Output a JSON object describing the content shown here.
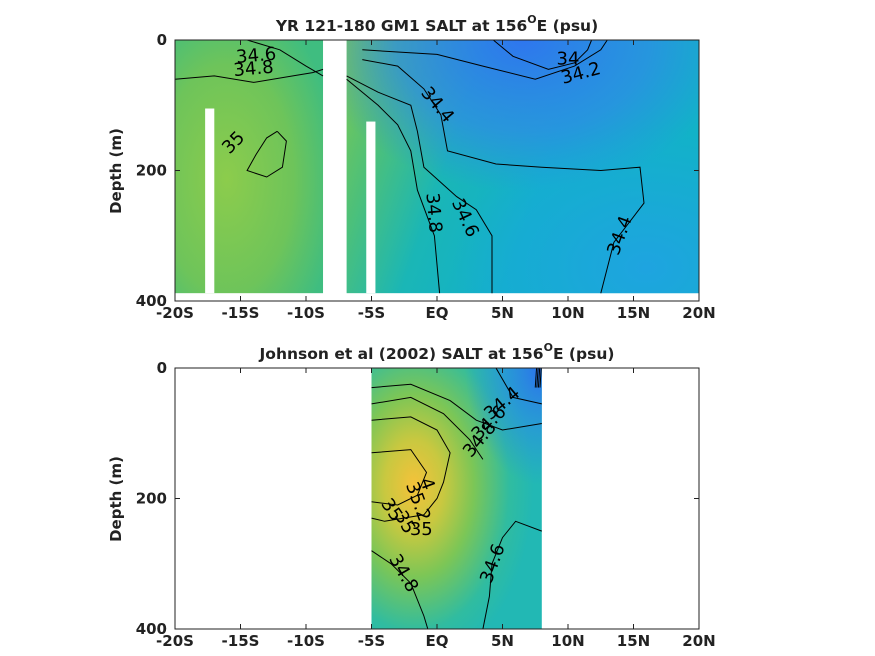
{
  "chart_data": [
    {
      "type": "heatmap",
      "title": "YR 121-180 GM1 SALT at 156",
      "title_sup": "O",
      "title_suffix": "E (psu)",
      "ylabel": "Depth (m)",
      "xlabel": "",
      "x_range": [
        -20,
        20
      ],
      "y_range": [
        0,
        400
      ],
      "y_reversed": true,
      "x_ticks": [
        -20,
        -15,
        -10,
        -5,
        0,
        5,
        10,
        15,
        20
      ],
      "x_tick_labels": [
        "-20S",
        "-15S",
        "-10S",
        "-5S",
        "EQ",
        "5N",
        "10N",
        "15N",
        "20N"
      ],
      "y_ticks": [
        0,
        200,
        400
      ],
      "y_tick_labels": [
        "0",
        "200",
        "400"
      ],
      "colors": {
        "low": "#3377ee",
        "mid": "#14b8c4",
        "high": "#8acc4c"
      },
      "colored_x_ranges": [
        [
          -20,
          -8.7
        ],
        [
          -6.9,
          20
        ]
      ],
      "data_bottom_depth": 388,
      "contours": [
        {
          "label": "34",
          "points": [
            [
              4.3,
              0
            ],
            [
              5.8,
              25
            ],
            [
              8.5,
              45
            ],
            [
              10.5,
              35
            ],
            [
              11.5,
              15
            ],
            [
              11.8,
              0
            ]
          ]
        },
        {
          "label": "34.2",
          "points": [
            [
              -5.7,
              15
            ],
            [
              0,
              22
            ],
            [
              3.5,
              40
            ],
            [
              7.5,
              60
            ],
            [
              10.5,
              40
            ],
            [
              12.5,
              15
            ],
            [
              13,
              0
            ]
          ]
        },
        {
          "label": "34.4",
          "points": [
            [
              -5.7,
              30
            ],
            [
              -3,
              40
            ],
            [
              -1,
              75
            ],
            [
              0.3,
              115
            ],
            [
              0.8,
              170
            ],
            [
              4.5,
              190
            ],
            [
              8,
              195
            ],
            [
              12.5,
              200
            ],
            [
              15.5,
              195
            ],
            [
              15.8,
              250
            ],
            [
              13.5,
              310
            ],
            [
              12.5,
              388
            ]
          ]
        },
        {
          "label": "34.6",
          "points": [
            [
              -14.5,
              0
            ],
            [
              -12,
              15
            ],
            [
              -10,
              40
            ],
            [
              -8.7,
              55
            ]
          ]
        },
        {
          "label": "34.6",
          "points": [
            [
              -6.9,
              55
            ],
            [
              -4.5,
              80
            ],
            [
              -2,
              100
            ],
            [
              -1.5,
              140
            ],
            [
              -1,
              195
            ],
            [
              1.5,
              240
            ],
            [
              3,
              260
            ],
            [
              4.2,
              300
            ],
            [
              4.2,
              388
            ]
          ]
        },
        {
          "label": "34.8",
          "points": [
            [
              -20,
              60
            ],
            [
              -17,
              55
            ],
            [
              -14,
              65
            ],
            [
              -11,
              55
            ],
            [
              -9.5,
              50
            ],
            [
              -8.7,
              45
            ]
          ]
        },
        {
          "label": "34.8",
          "points": [
            [
              -6.9,
              60
            ],
            [
              -4.5,
              100
            ],
            [
              -3,
              130
            ],
            [
              -2,
              170
            ],
            [
              -1.5,
              230
            ],
            [
              -0.2,
              300
            ],
            [
              0.2,
              388
            ]
          ]
        },
        {
          "label": "35",
          "points": [
            [
              -12.2,
              140
            ],
            [
              -11.5,
              155
            ],
            [
              -11.8,
              195
            ],
            [
              -13,
              210
            ],
            [
              -14.5,
              200
            ],
            [
              -13.8,
              175
            ],
            [
              -13,
              150
            ],
            [
              -12.2,
              140
            ]
          ]
        }
      ],
      "contour_labels": [
        {
          "text": "34.6",
          "x": -13.8,
          "y": 25,
          "angle": -5
        },
        {
          "text": "34.8",
          "x": -14,
          "y": 45,
          "angle": -5
        },
        {
          "text": "34",
          "x": 10,
          "y": 30,
          "angle": 0
        },
        {
          "text": "34.2",
          "x": 11,
          "y": 52,
          "angle": -15
        },
        {
          "text": "34.4",
          "x": 0,
          "y": 100,
          "angle": 50
        },
        {
          "text": "35",
          "x": -15.5,
          "y": 158,
          "angle": -45
        },
        {
          "text": "34.8",
          "x": -0.3,
          "y": 265,
          "angle": 85
        },
        {
          "text": "34.6",
          "x": 2.1,
          "y": 273,
          "angle": 65
        },
        {
          "text": "34.4",
          "x": 14,
          "y": 300,
          "angle": -70
        }
      ]
    },
    {
      "type": "heatmap",
      "title": "Johnson et al (2002) SALT at 156",
      "title_sup": "O",
      "title_suffix": "E (psu)",
      "ylabel": "Depth (m)",
      "xlabel": "",
      "x_range": [
        -20,
        20
      ],
      "y_range": [
        0,
        400
      ],
      "y_reversed": true,
      "x_ticks": [
        -20,
        -15,
        -10,
        -5,
        0,
        5,
        10,
        15,
        20
      ],
      "x_tick_labels": [
        "-20S",
        "-15S",
        "-10S",
        "-5S",
        "EQ",
        "5N",
        "10N",
        "15N",
        "20N"
      ],
      "y_ticks": [
        0,
        200,
        400
      ],
      "y_tick_labels": [
        "0",
        "200",
        "400"
      ],
      "colors": {
        "low": "#3377ee",
        "mid": "#14b8c4",
        "high": "#8acc4c",
        "max": "#f5c23a"
      },
      "colored_x_ranges": [
        [
          -5,
          8
        ]
      ],
      "data_bottom_depth": 400,
      "contours": [
        {
          "label": "34.4",
          "points": [
            [
              4.5,
              0
            ],
            [
              5.8,
              45
            ],
            [
              8,
              55
            ]
          ]
        },
        {
          "label": "34.6",
          "points": [
            [
              -5,
              30
            ],
            [
              -2,
              25
            ],
            [
              1,
              50
            ],
            [
              3,
              80
            ],
            [
              5,
              95
            ],
            [
              8,
              85
            ]
          ]
        },
        {
          "label": "34.6",
          "points": [
            [
              8,
              250
            ],
            [
              6,
              235
            ],
            [
              5,
              260
            ],
            [
              4.2,
              300
            ],
            [
              4,
              350
            ],
            [
              3.5,
              400
            ]
          ]
        },
        {
          "label": "34.8",
          "points": [
            [
              -5,
              55
            ],
            [
              -2,
              45
            ],
            [
              0.5,
              70
            ],
            [
              2.5,
              110
            ],
            [
              3.5,
              140
            ]
          ]
        },
        {
          "label": "34.8",
          "points": [
            [
              -5,
              280
            ],
            [
              -3.5,
              300
            ],
            [
              -2,
              330
            ],
            [
              -1,
              380
            ],
            [
              -0.7,
              400
            ]
          ]
        },
        {
          "label": "35",
          "points": [
            [
              -5,
              80
            ],
            [
              -2,
              75
            ],
            [
              0,
              95
            ],
            [
              1,
              130
            ],
            [
              0.5,
              175
            ],
            [
              0,
              200
            ],
            [
              -1,
              225
            ],
            [
              -4,
              235
            ],
            [
              -5,
              230
            ]
          ]
        },
        {
          "label": "35.2",
          "points": [
            [
              -5,
              130
            ],
            [
              -2,
              125
            ],
            [
              -0.8,
              160
            ],
            [
              -1.5,
              195
            ],
            [
              -3,
              210
            ],
            [
              -5,
              205
            ]
          ]
        }
      ],
      "contour_labels": [
        {
          "text": "34.4",
          "x": 5,
          "y": 55,
          "angle": -40
        },
        {
          "text": "34.6",
          "x": 4,
          "y": 85,
          "angle": -45
        },
        {
          "text": "34.8",
          "x": 3.3,
          "y": 110,
          "angle": -50
        },
        {
          "text": "4",
          "x": -0.8,
          "y": 178,
          "angle": 70
        },
        {
          "text": "35.2",
          "x": -1.5,
          "y": 205,
          "angle": 70
        },
        {
          "text": "35",
          "x": -3.5,
          "y": 218,
          "angle": 55
        },
        {
          "text": "35",
          "x": -2.5,
          "y": 237,
          "angle": 60
        },
        {
          "text": "35",
          "x": -1.2,
          "y": 248,
          "angle": 0
        },
        {
          "text": "34.6",
          "x": 4.3,
          "y": 300,
          "angle": -70
        },
        {
          "text": "34.8",
          "x": -2.6,
          "y": 315,
          "angle": 60
        }
      ]
    }
  ]
}
